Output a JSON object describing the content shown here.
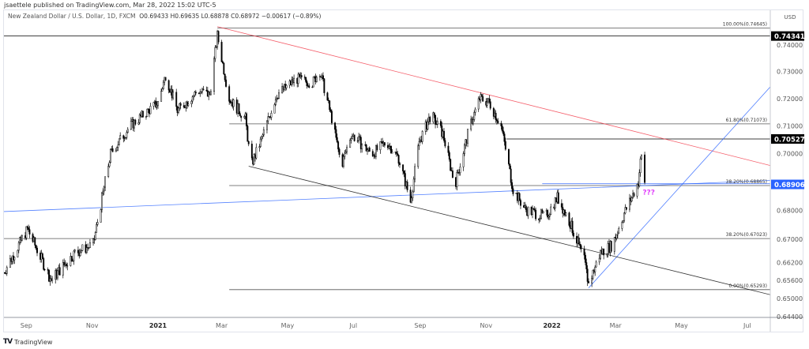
{
  "header": {
    "publisher": "jsaettele published on TradingView.com, Mar 28, 2022 15:02 UTC-5",
    "symbol": "New Zealand Dollar / U.S. Dollar, 1D, FXCM",
    "ohlc": "O0.69433  H0.69635  L0.68878  C0.68972  −0.00617 (−0.89%)"
  },
  "footer": {
    "brand": "TradingView",
    "logo": "TV"
  },
  "chart_data": {
    "type": "candlestick",
    "currency": "USD",
    "y_scale": "log",
    "ylim": [
      0.6415,
      0.7515
    ],
    "xlim": [
      "2020-08-08",
      "2022-07-25"
    ],
    "grid": false,
    "y_ticks": [
      "0.74000",
      "0.73000",
      "0.72000",
      "0.71000",
      "0.70000",
      "0.68000",
      "0.67000",
      "0.66200",
      "0.65600",
      "0.65000",
      "0.64400"
    ],
    "x_ticks": [
      {
        "label": "Sep",
        "date": "2020-09-01"
      },
      {
        "label": "Nov",
        "date": "2020-11-01"
      },
      {
        "label": "2021",
        "date": "2021-01-01",
        "bold": true
      },
      {
        "label": "Mar",
        "date": "2021-03-01"
      },
      {
        "label": "May",
        "date": "2021-05-01"
      },
      {
        "label": "Jul",
        "date": "2021-07-01"
      },
      {
        "label": "Sep",
        "date": "2021-09-01"
      },
      {
        "label": "Nov",
        "date": "2021-11-01"
      },
      {
        "label": "2022",
        "date": "2022-01-01",
        "bold": true
      },
      {
        "label": "Mar",
        "date": "2022-03-01"
      },
      {
        "label": "May",
        "date": "2022-05-01"
      },
      {
        "label": "Jul",
        "date": "2022-07-01"
      }
    ],
    "price_path": [
      [
        "2020-08-11",
        0.6587
      ],
      [
        "2020-09-02",
        0.6735
      ],
      [
        "2020-09-24",
        0.6561
      ],
      [
        "2020-10-16",
        0.6654
      ],
      [
        "2020-11-02",
        0.6681
      ],
      [
        "2020-11-18",
        0.6999
      ],
      [
        "2020-12-06",
        0.7099
      ],
      [
        "2021-01-01",
        0.7185
      ],
      [
        "2021-01-08",
        0.7287
      ],
      [
        "2021-01-19",
        0.7156
      ],
      [
        "2021-02-07",
        0.7229
      ],
      [
        "2021-02-18",
        0.7214
      ],
      [
        "2021-02-25",
        0.7436
      ],
      [
        "2021-03-08",
        0.72
      ],
      [
        "2021-03-23",
        0.7127
      ],
      [
        "2021-03-28",
        0.6956
      ],
      [
        "2021-04-06",
        0.7042
      ],
      [
        "2021-04-21",
        0.7214
      ],
      [
        "2021-05-09",
        0.7273
      ],
      [
        "2021-05-24",
        0.7258
      ],
      [
        "2021-05-31",
        0.7302
      ],
      [
        "2021-06-11",
        0.7127
      ],
      [
        "2021-06-20",
        0.6956
      ],
      [
        "2021-06-29",
        0.707
      ],
      [
        "2021-07-18",
        0.6999
      ],
      [
        "2021-08-01",
        0.7042
      ],
      [
        "2021-08-12",
        0.6984
      ],
      [
        "2021-08-23",
        0.6831
      ],
      [
        "2021-08-31",
        0.7042
      ],
      [
        "2021-09-11",
        0.7142
      ],
      [
        "2021-09-22",
        0.707
      ],
      [
        "2021-10-03",
        0.6887
      ],
      [
        "2021-10-17",
        0.7099
      ],
      [
        "2021-10-26",
        0.72
      ],
      [
        "2021-11-04",
        0.7185
      ],
      [
        "2021-11-15",
        0.7099
      ],
      [
        "2021-11-26",
        0.6873
      ],
      [
        "2021-12-07",
        0.6804
      ],
      [
        "2021-12-26",
        0.6776
      ],
      [
        "2022-01-06",
        0.6845
      ],
      [
        "2022-01-17",
        0.6763
      ],
      [
        "2022-01-31",
        0.6627
      ],
      [
        "2022-02-04",
        0.6548
      ],
      [
        "2022-02-15",
        0.6654
      ],
      [
        "2022-02-26",
        0.6681
      ],
      [
        "2022-03-09",
        0.679
      ],
      [
        "2022-03-16",
        0.6845
      ],
      [
        "2022-03-22",
        0.69
      ],
      [
        "2022-03-24",
        0.697
      ],
      [
        "2022-03-25",
        0.699
      ],
      [
        "2022-03-28",
        0.68972
      ]
    ],
    "price_labels": [
      {
        "value": "0.74341",
        "color": "#000000"
      },
      {
        "value": "0.70527",
        "color": "#000000"
      },
      {
        "value": "0.68906",
        "color": "#2962ff"
      }
    ],
    "fib_levels": [
      {
        "label": "100.00%(0.74645)",
        "price": 0.74645,
        "from": "2021-02-25"
      },
      {
        "label": "61.80%(0.71073)",
        "price": 0.71073,
        "from": "2021-03-08"
      },
      {
        "label": "38.20%(0.68865)",
        "price": 0.68865,
        "from": "2021-03-08"
      },
      {
        "label": "38.20%(0.67023)",
        "price": 0.67023,
        "from": "2020-08-08"
      },
      {
        "label": "0.00%(0.65293)",
        "price": 0.65293,
        "from": "2021-03-08"
      }
    ],
    "horizontal_lines": [
      {
        "price": 0.74341,
        "from": "2020-08-08",
        "color": "#000000"
      },
      {
        "price": 0.70527,
        "from": "2021-11-20",
        "color": "#000000"
      }
    ],
    "trend_lines": [
      {
        "from": [
          "2021-02-25",
          0.747
        ],
        "to": [
          "2022-07-25",
          0.6955
        ],
        "color": "#f23645"
      },
      {
        "from": [
          "2020-08-08",
          0.6795
        ],
        "to": [
          "2022-07-25",
          0.6905
        ],
        "color": "#2962ff"
      },
      {
        "from": [
          "2022-02-04",
          0.6535
        ],
        "to": [
          "2022-07-25",
          0.7255
        ],
        "color": "#2962ff"
      },
      {
        "from": [
          "2021-03-26",
          0.6955
        ],
        "to": [
          "2022-07-25",
          0.651
        ],
        "color": "#000000"
      },
      {
        "from": [
          "2021-12-23",
          0.6893
        ],
        "to": [
          "2022-07-25",
          0.6893
        ],
        "color": "#2962ff"
      }
    ],
    "annotations": [
      {
        "text": "???",
        "color": "#e040fb",
        "date": "2022-03-26",
        "price": 0.6855
      }
    ]
  }
}
